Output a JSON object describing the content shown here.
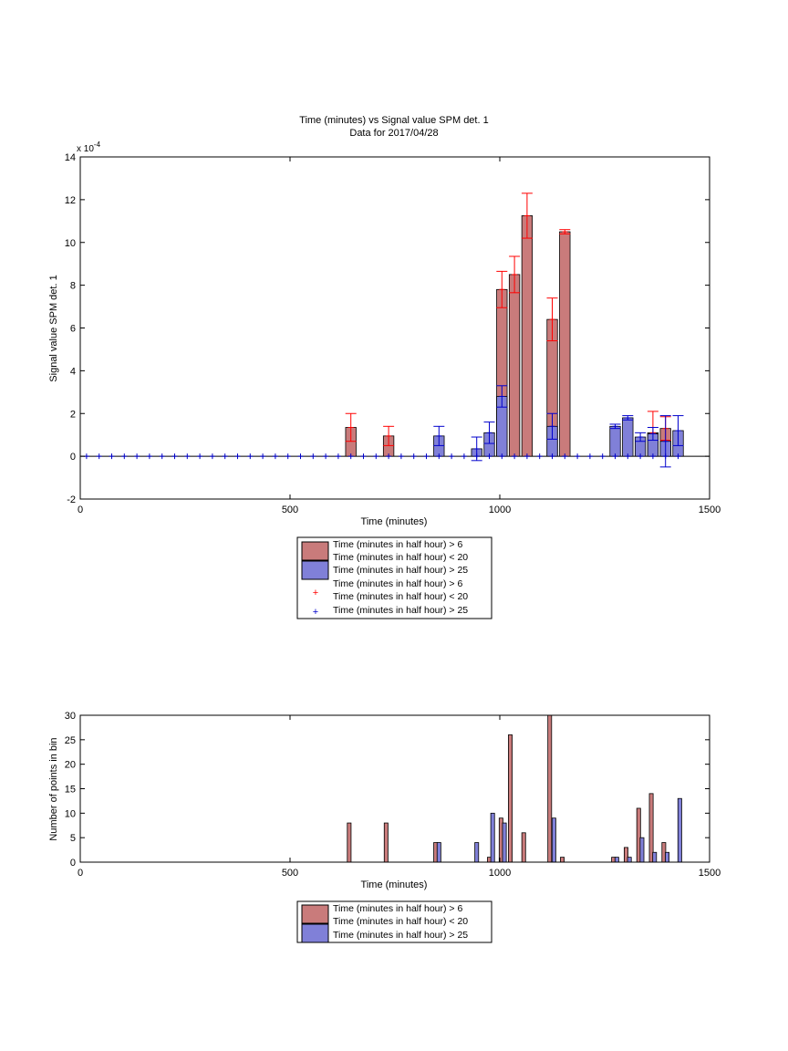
{
  "chart_data": [
    {
      "type": "bar",
      "title": "Time (minutes) vs Signal value SPM det. 1",
      "subtitle": "Data for 2017/04/28",
      "xlabel": "Time (minutes)",
      "ylabel": "Signal value SPM det. 1",
      "y_multiplier": "x 10",
      "y_exponent": "-4",
      "xlim": [
        0,
        1500
      ],
      "ylim": [
        -2,
        14
      ],
      "xticks": [
        0,
        500,
        1000,
        1500
      ],
      "yticks": [
        -2,
        0,
        2,
        4,
        6,
        8,
        10,
        12,
        14
      ],
      "grid": false,
      "legend_position": "below",
      "legend": [
        "Time (minutes in half hour) > 6\nTime (minutes in half hour) < 20",
        "Time (minutes in half hour) > 25",
        "Time (minutes in half hour) > 6\nTime (minutes in half hour) < 20",
        "Time (minutes in half hour) > 25"
      ],
      "colors": {
        "red_bar": "#c97b7b",
        "blue_bar": "#8080d8",
        "red_err": "#ff0000",
        "blue_err": "#0000cc"
      },
      "series": [
        {
          "style": "red_bar",
          "x": [
            645,
            735,
            1005,
            1035,
            1065,
            1125,
            1155,
            1365,
            1395
          ],
          "values": [
            1.35,
            0.95,
            7.8,
            8.5,
            11.25,
            6.4,
            10.5,
            1.1,
            1.3
          ],
          "errors": [
            0.65,
            0.45,
            0.85,
            0.85,
            1.05,
            1.0,
            0.1,
            1.0,
            0.55
          ]
        },
        {
          "style": "blue_bar",
          "x": [
            855,
            945,
            975,
            1005,
            1125,
            1275,
            1305,
            1335,
            1365,
            1395,
            1425
          ],
          "values": [
            0.95,
            0.35,
            1.1,
            2.8,
            1.4,
            1.4,
            1.8,
            0.9,
            1.05,
            0.7,
            1.2
          ],
          "errors": [
            0.45,
            0.55,
            0.5,
            0.5,
            0.6,
            0.1,
            0.1,
            0.2,
            0.3,
            1.2,
            0.7
          ]
        }
      ],
      "marker_points": {
        "style": "blue_err",
        "x_start": 15,
        "x_step": 30,
        "x_end": 1425,
        "y": 0
      }
    },
    {
      "type": "bar",
      "xlabel": "Time (minutes)",
      "ylabel": "Number of points in bin",
      "xlim": [
        0,
        1500
      ],
      "ylim": [
        0,
        30
      ],
      "xticks": [
        0,
        500,
        1000,
        1500
      ],
      "yticks": [
        0,
        5,
        10,
        15,
        20,
        25,
        30
      ],
      "grid": false,
      "legend_position": "below",
      "legend": [
        "Time (minutes in half hour) > 6\nTime (minutes in half hour) < 20",
        "Time (minutes in half hour) > 25"
      ],
      "series": [
        {
          "style": "red_bar",
          "x": [
            641,
            729,
            847,
            975,
            1003,
            1025,
            1057,
            1119,
            1149,
            1271,
            1301,
            1331,
            1361,
            1391
          ],
          "values": [
            8,
            8,
            4,
            1,
            9,
            26,
            6,
            30,
            1,
            1,
            3,
            11,
            14,
            4
          ]
        },
        {
          "style": "blue_bar",
          "x": [
            855,
            945,
            983,
            1011,
            1129,
            1279,
            1309,
            1339,
            1369,
            1399,
            1429
          ],
          "values": [
            4,
            4,
            10,
            8,
            9,
            1,
            1,
            5,
            2,
            2,
            13
          ]
        }
      ]
    }
  ]
}
